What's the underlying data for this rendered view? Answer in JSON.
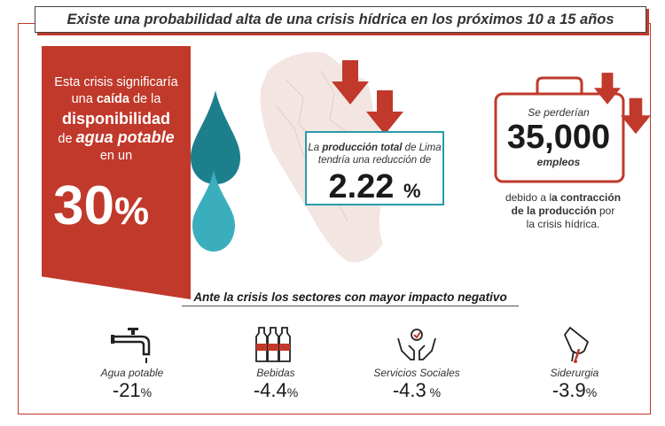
{
  "title": "Existe una probabilidad alta de una crisis hídrica en los próximos 10 a 15 años",
  "banner": {
    "line1": "Esta crisis significaría",
    "line2_pre": "una ",
    "line2_bold": "caída",
    "line2_post": " de la",
    "line3": "disponibilidad",
    "line4_pre": "de ",
    "line4_italic": "agua potable",
    "line5": "en un",
    "percent_value": "30",
    "percent_sign": "%"
  },
  "production": {
    "line1_pre": "La ",
    "line1_bold": "producción total",
    "line1_post": " de Lima",
    "line2": "tendría una reducción de",
    "value": "2.22",
    "unit": "%"
  },
  "jobs": {
    "intro": "Se perderían",
    "value": "35,000",
    "label": "empleos",
    "desc_line1_pre": "debido a l",
    "desc_line1_bold": "a contracción",
    "desc_line2_bold": "de la producción",
    "desc_line2_post": " por",
    "desc_line3": "la crisis hídrica."
  },
  "sectors_title": "Ante la crisis los sectores con mayor impacto negativo",
  "sectors": [
    {
      "name": "Agua potable",
      "value": "-21",
      "unit": "%",
      "icon": "faucet-icon"
    },
    {
      "name": "Bebidas",
      "value": "-4.4",
      "unit": "%",
      "icon": "bottles-icon"
    },
    {
      "name": "Servicios Sociales",
      "value": "-4.3",
      "unit": " %",
      "icon": "hands-icon"
    },
    {
      "name": "Siderurgia",
      "value": "-3.9",
      "unit": "%",
      "icon": "steel-icon"
    }
  ],
  "colors": {
    "red": "#c0392b",
    "teal": "#2a9aa8",
    "drop_dark": "#1e7f8c",
    "drop_light": "#3aaebd"
  }
}
